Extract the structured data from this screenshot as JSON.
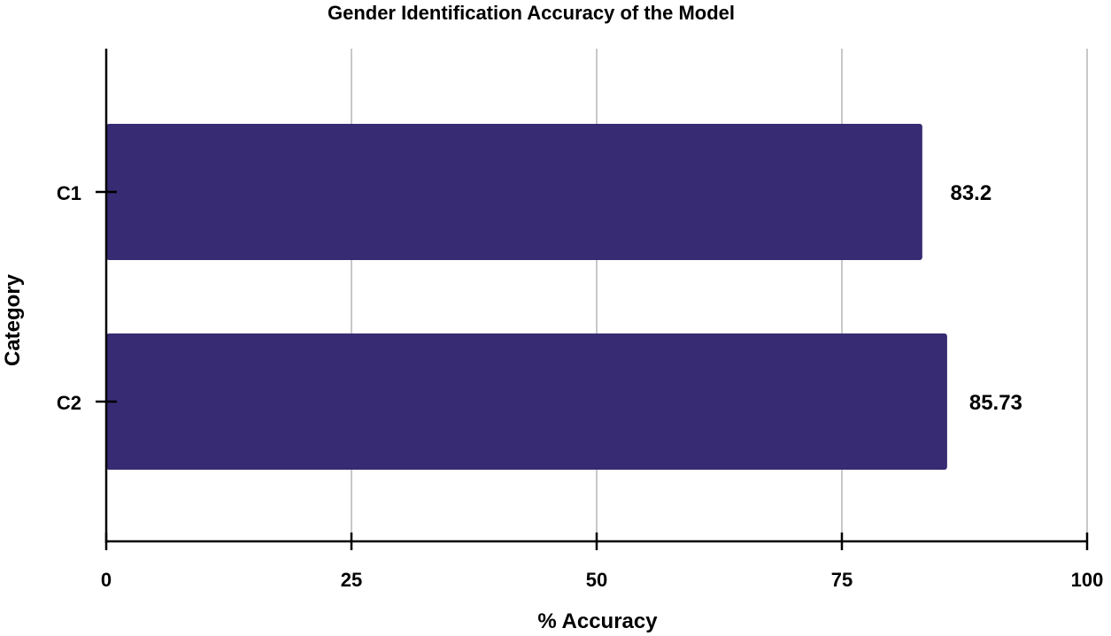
{
  "chart_data": {
    "type": "bar",
    "orientation": "horizontal",
    "title": "Gender Identification Accuracy of the Model",
    "xlabel": "% Accuracy",
    "ylabel": "Category",
    "categories": [
      "C1",
      "C2"
    ],
    "values": [
      83.2,
      85.73
    ],
    "data_labels": [
      "83.2",
      "85.73"
    ],
    "xlim": [
      0,
      100
    ],
    "xticks": [
      0,
      25,
      50,
      75,
      100
    ],
    "xtick_labels": [
      "0",
      "25",
      "50",
      "75",
      "100"
    ],
    "grid": "vertical",
    "bar_color": "#372B73"
  }
}
